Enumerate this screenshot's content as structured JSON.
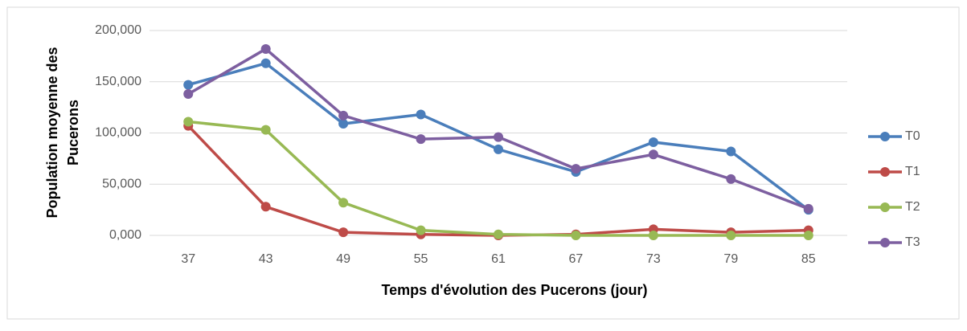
{
  "chart_data": {
    "type": "line",
    "x_label": "Temps d'évolution des Pucerons (jour)",
    "y_label": [
      "Population moyenne des",
      "Pucerons"
    ],
    "categories": [
      "37",
      "43",
      "49",
      "55",
      "61",
      "67",
      "73",
      "79",
      "85"
    ],
    "series": [
      {
        "name": "T0",
        "color": "#4a7ebb",
        "values": [
          147,
          168,
          109,
          118,
          84,
          62,
          91,
          82,
          25
        ]
      },
      {
        "name": "T1",
        "color": "#be4b48",
        "values": [
          107,
          28,
          3,
          1,
          0,
          1,
          6,
          3,
          5
        ]
      },
      {
        "name": "T2",
        "color": "#98b954",
        "values": [
          111,
          103,
          32,
          5,
          1,
          0,
          0,
          0,
          0
        ]
      },
      {
        "name": "T3",
        "color": "#7d5fa0",
        "values": [
          138,
          182,
          117,
          94,
          96,
          65,
          79,
          55,
          26
        ]
      }
    ],
    "ylim": [
      0,
      200
    ],
    "yticks": [
      {
        "value": 0,
        "label": "0,000"
      },
      {
        "value": 50,
        "label": "50,000"
      },
      {
        "value": 100,
        "label": "100,000"
      },
      {
        "value": 150,
        "label": "150,000"
      },
      {
        "value": 200,
        "label": "200,000"
      }
    ],
    "grid": true,
    "legend": "right"
  }
}
